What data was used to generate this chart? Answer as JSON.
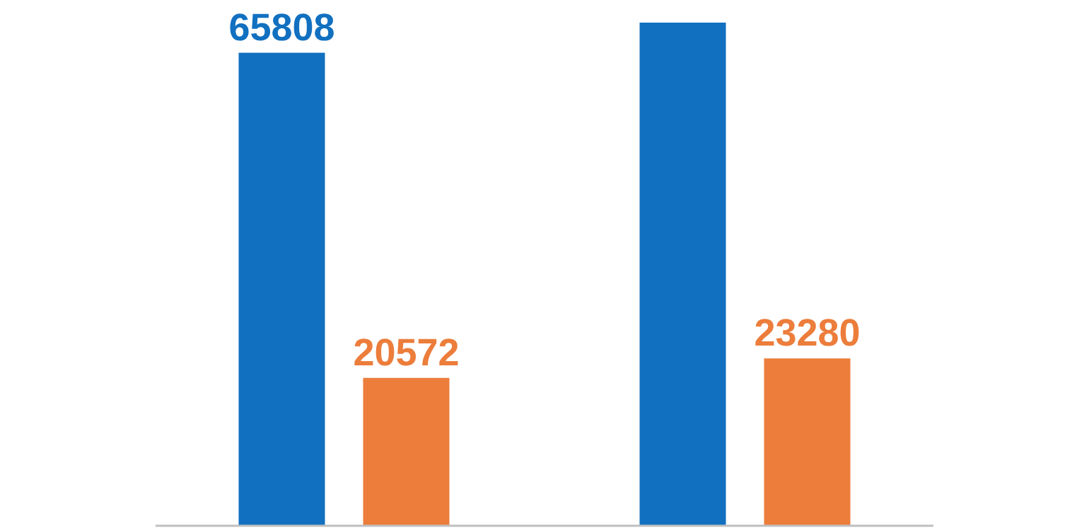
{
  "chart_data": {
    "type": "bar",
    "categories": [
      null,
      null
    ],
    "series": [
      {
        "color": "#1170c0",
        "values": [
          65808,
          70000
        ],
        "value_labels": [
          "65808",
          null
        ]
      },
      {
        "color": "#ec7d3b",
        "values": [
          20572,
          23280
        ],
        "value_labels": [
          "20572",
          "23280"
        ]
      }
    ]
  }
}
